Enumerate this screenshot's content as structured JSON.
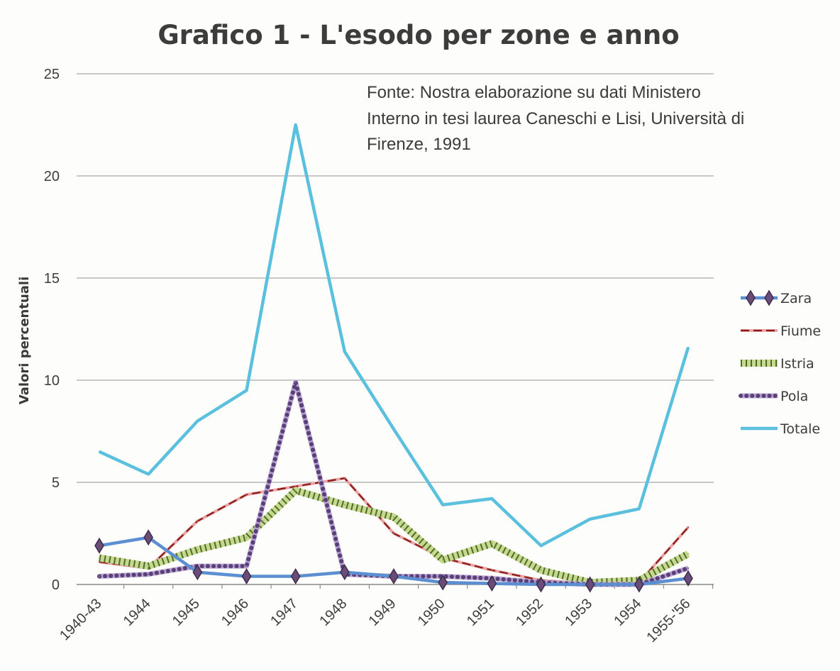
{
  "chart_data": {
    "type": "line",
    "title": "Grafico 1 - L'esodo per zone e anno",
    "xlabel": "",
    "ylabel": "Valori percentuali",
    "ylim": [
      0,
      25
    ],
    "yticks": [
      0,
      5,
      10,
      15,
      20,
      25
    ],
    "grid": true,
    "legend_position": "right",
    "categories": [
      "1940-43",
      "1944",
      "1945",
      "1946",
      "1947",
      "1948",
      "1949",
      "1950",
      "1951",
      "1952",
      "1953",
      "1954",
      "1955-'56"
    ],
    "annotation": [
      "Fonte:  Nostra elaborazione su dati Ministero",
      "Interno  in tesi laurea Caneschi e Lisi, Università di",
      "Firenze, 1991"
    ],
    "series": [
      {
        "name": "Zara",
        "color": "#5b8fd1",
        "style": "diamond",
        "values": [
          1.9,
          2.3,
          0.6,
          0.4,
          0.4,
          0.6,
          0.4,
          0.1,
          0.05,
          0.0,
          0.0,
          0.0,
          0.3
        ]
      },
      {
        "name": "Fiume",
        "color": "#c0504d",
        "style": "dashed",
        "values": [
          1.1,
          0.8,
          3.1,
          4.4,
          4.8,
          5.2,
          2.5,
          1.3,
          0.7,
          0.2,
          0.05,
          0.1,
          2.8
        ]
      },
      {
        "name": "Istria",
        "color": "#9bbb59",
        "style": "hatched",
        "values": [
          1.3,
          0.9,
          1.7,
          2.3,
          4.6,
          3.9,
          3.3,
          1.2,
          2.0,
          0.7,
          0.1,
          0.2,
          1.5
        ]
      },
      {
        "name": "Pola",
        "color": "#8064a2",
        "style": "dotted",
        "values": [
          0.4,
          0.5,
          0.9,
          0.9,
          9.9,
          0.5,
          0.4,
          0.4,
          0.3,
          0.1,
          0.0,
          0.0,
          0.8
        ]
      },
      {
        "name": "Totale",
        "color": "#5bc0de",
        "style": "solid",
        "values": [
          6.5,
          5.4,
          8.0,
          9.5,
          22.5,
          11.4,
          7.6,
          3.9,
          4.2,
          1.9,
          3.2,
          3.7,
          11.6
        ]
      }
    ]
  }
}
